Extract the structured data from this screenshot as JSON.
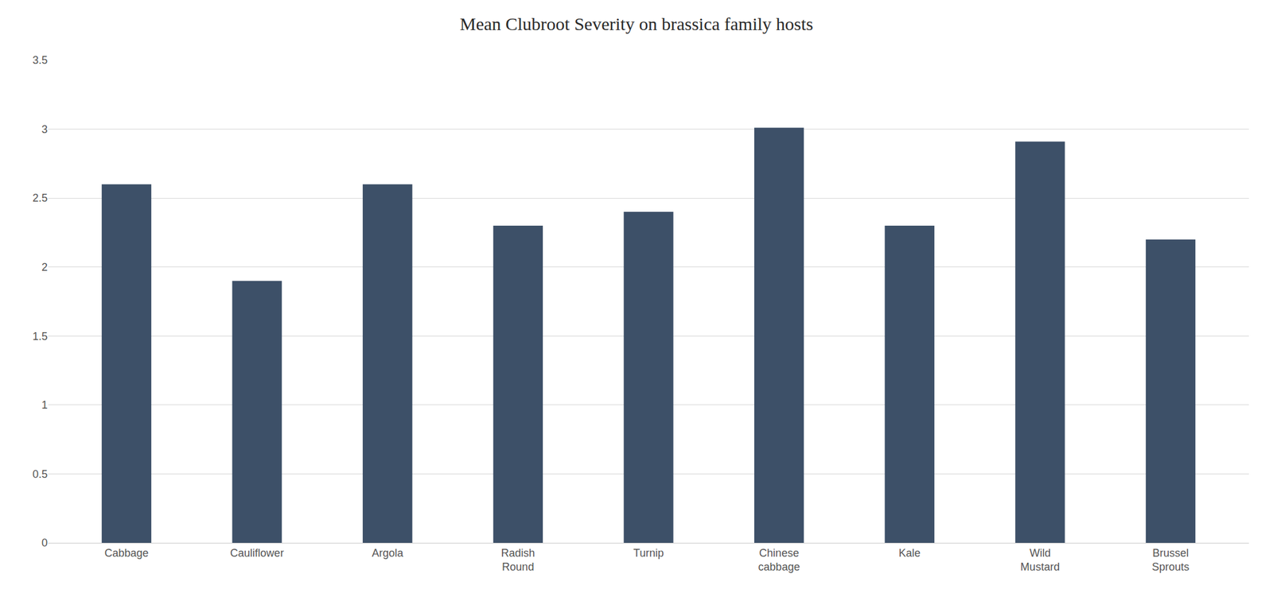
{
  "chart_data": {
    "type": "bar",
    "title": "Mean Clubroot Severity on brassica family hosts",
    "categories": [
      "Cabbage",
      "Cauliflower",
      "Argola",
      "Radish\nRound",
      "Turnip",
      "Chinese\ncabbage",
      "Kale",
      "Wild\nMustard",
      "Brussel\nSprouts"
    ],
    "values": [
      2.6,
      1.9,
      2.6,
      2.3,
      2.4,
      3.01,
      2.3,
      2.91,
      2.2
    ],
    "color": "#3d5068",
    "ylim": [
      0,
      3.5
    ],
    "yticks": [
      0,
      0.5,
      1,
      1.5,
      2,
      2.5,
      3,
      3.5
    ],
    "grid": true
  }
}
